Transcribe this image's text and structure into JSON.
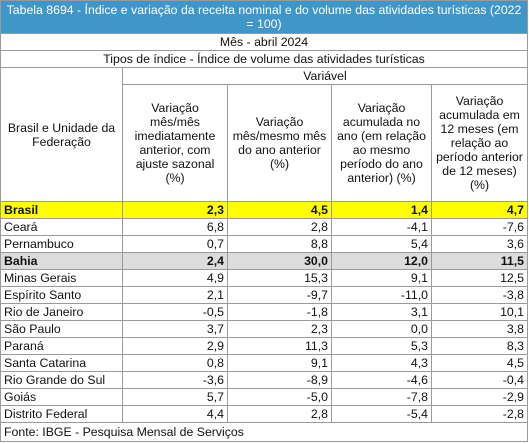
{
  "title": "Tabela 8694 - Índice e variação da receita nominal e do volume das atividades turísticas (2022 = 100)",
  "period": "Mês - abril 2024",
  "index_type": "Tipos de índice - Índice de volume das atividades turísticas",
  "variable_label": "Variável",
  "row_header": "Brasil e Unidade da Federação",
  "columns": [
    "Variação mês/mês imediatamente anterior, com ajuste sazonal (%)",
    "Variação mês/mesmo mês do ano anterior (%)",
    "Variação acumulada no ano (em relação ao mesmo período do ano anterior) (%)",
    "Variação acumulada em 12 meses (em relação ao período anterior de 12 meses) (%)"
  ],
  "rows": [
    {
      "name": "Brasil",
      "values": [
        "2,3",
        "4,5",
        "1,4",
        "4,7"
      ]
    },
    {
      "name": "Ceará",
      "values": [
        "6,8",
        "2,8",
        "-4,1",
        "-7,6"
      ]
    },
    {
      "name": "Pernambuco",
      "values": [
        "0,7",
        "8,8",
        "5,4",
        "3,6"
      ]
    },
    {
      "name": "Bahia",
      "values": [
        "2,4",
        "30,0",
        "12,0",
        "11,5"
      ]
    },
    {
      "name": "Minas Gerais",
      "values": [
        "4,9",
        "15,3",
        "9,1",
        "12,5"
      ]
    },
    {
      "name": "Espírito Santo",
      "values": [
        "2,1",
        "-9,7",
        "-11,0",
        "-3,8"
      ]
    },
    {
      "name": "Rio de Janeiro",
      "values": [
        "-0,5",
        "-1,8",
        "3,1",
        "10,1"
      ]
    },
    {
      "name": "São Paulo",
      "values": [
        "3,7",
        "2,3",
        "0,0",
        "3,8"
      ]
    },
    {
      "name": "Paraná",
      "values": [
        "2,9",
        "11,3",
        "5,3",
        "8,3"
      ]
    },
    {
      "name": "Santa Catarina",
      "values": [
        "0,8",
        "9,1",
        "4,3",
        "4,5"
      ]
    },
    {
      "name": "Rio Grande do Sul",
      "values": [
        "-3,6",
        "-8,9",
        "-4,6",
        "-0,4"
      ]
    },
    {
      "name": "Goiás",
      "values": [
        "5,7",
        "-5,0",
        "-7,8",
        "-2,9"
      ]
    },
    {
      "name": "Distrito Federal",
      "values": [
        "4,4",
        "2,8",
        "-5,4",
        "-2,8"
      ]
    }
  ],
  "footer": "Fonte: IBGE - Pesquisa Mensal de Serviços",
  "colors": {
    "title_bg": "#3f96c8",
    "brasil_highlight": "#ffff00",
    "bahia_highlight": "#dcdcdc"
  }
}
